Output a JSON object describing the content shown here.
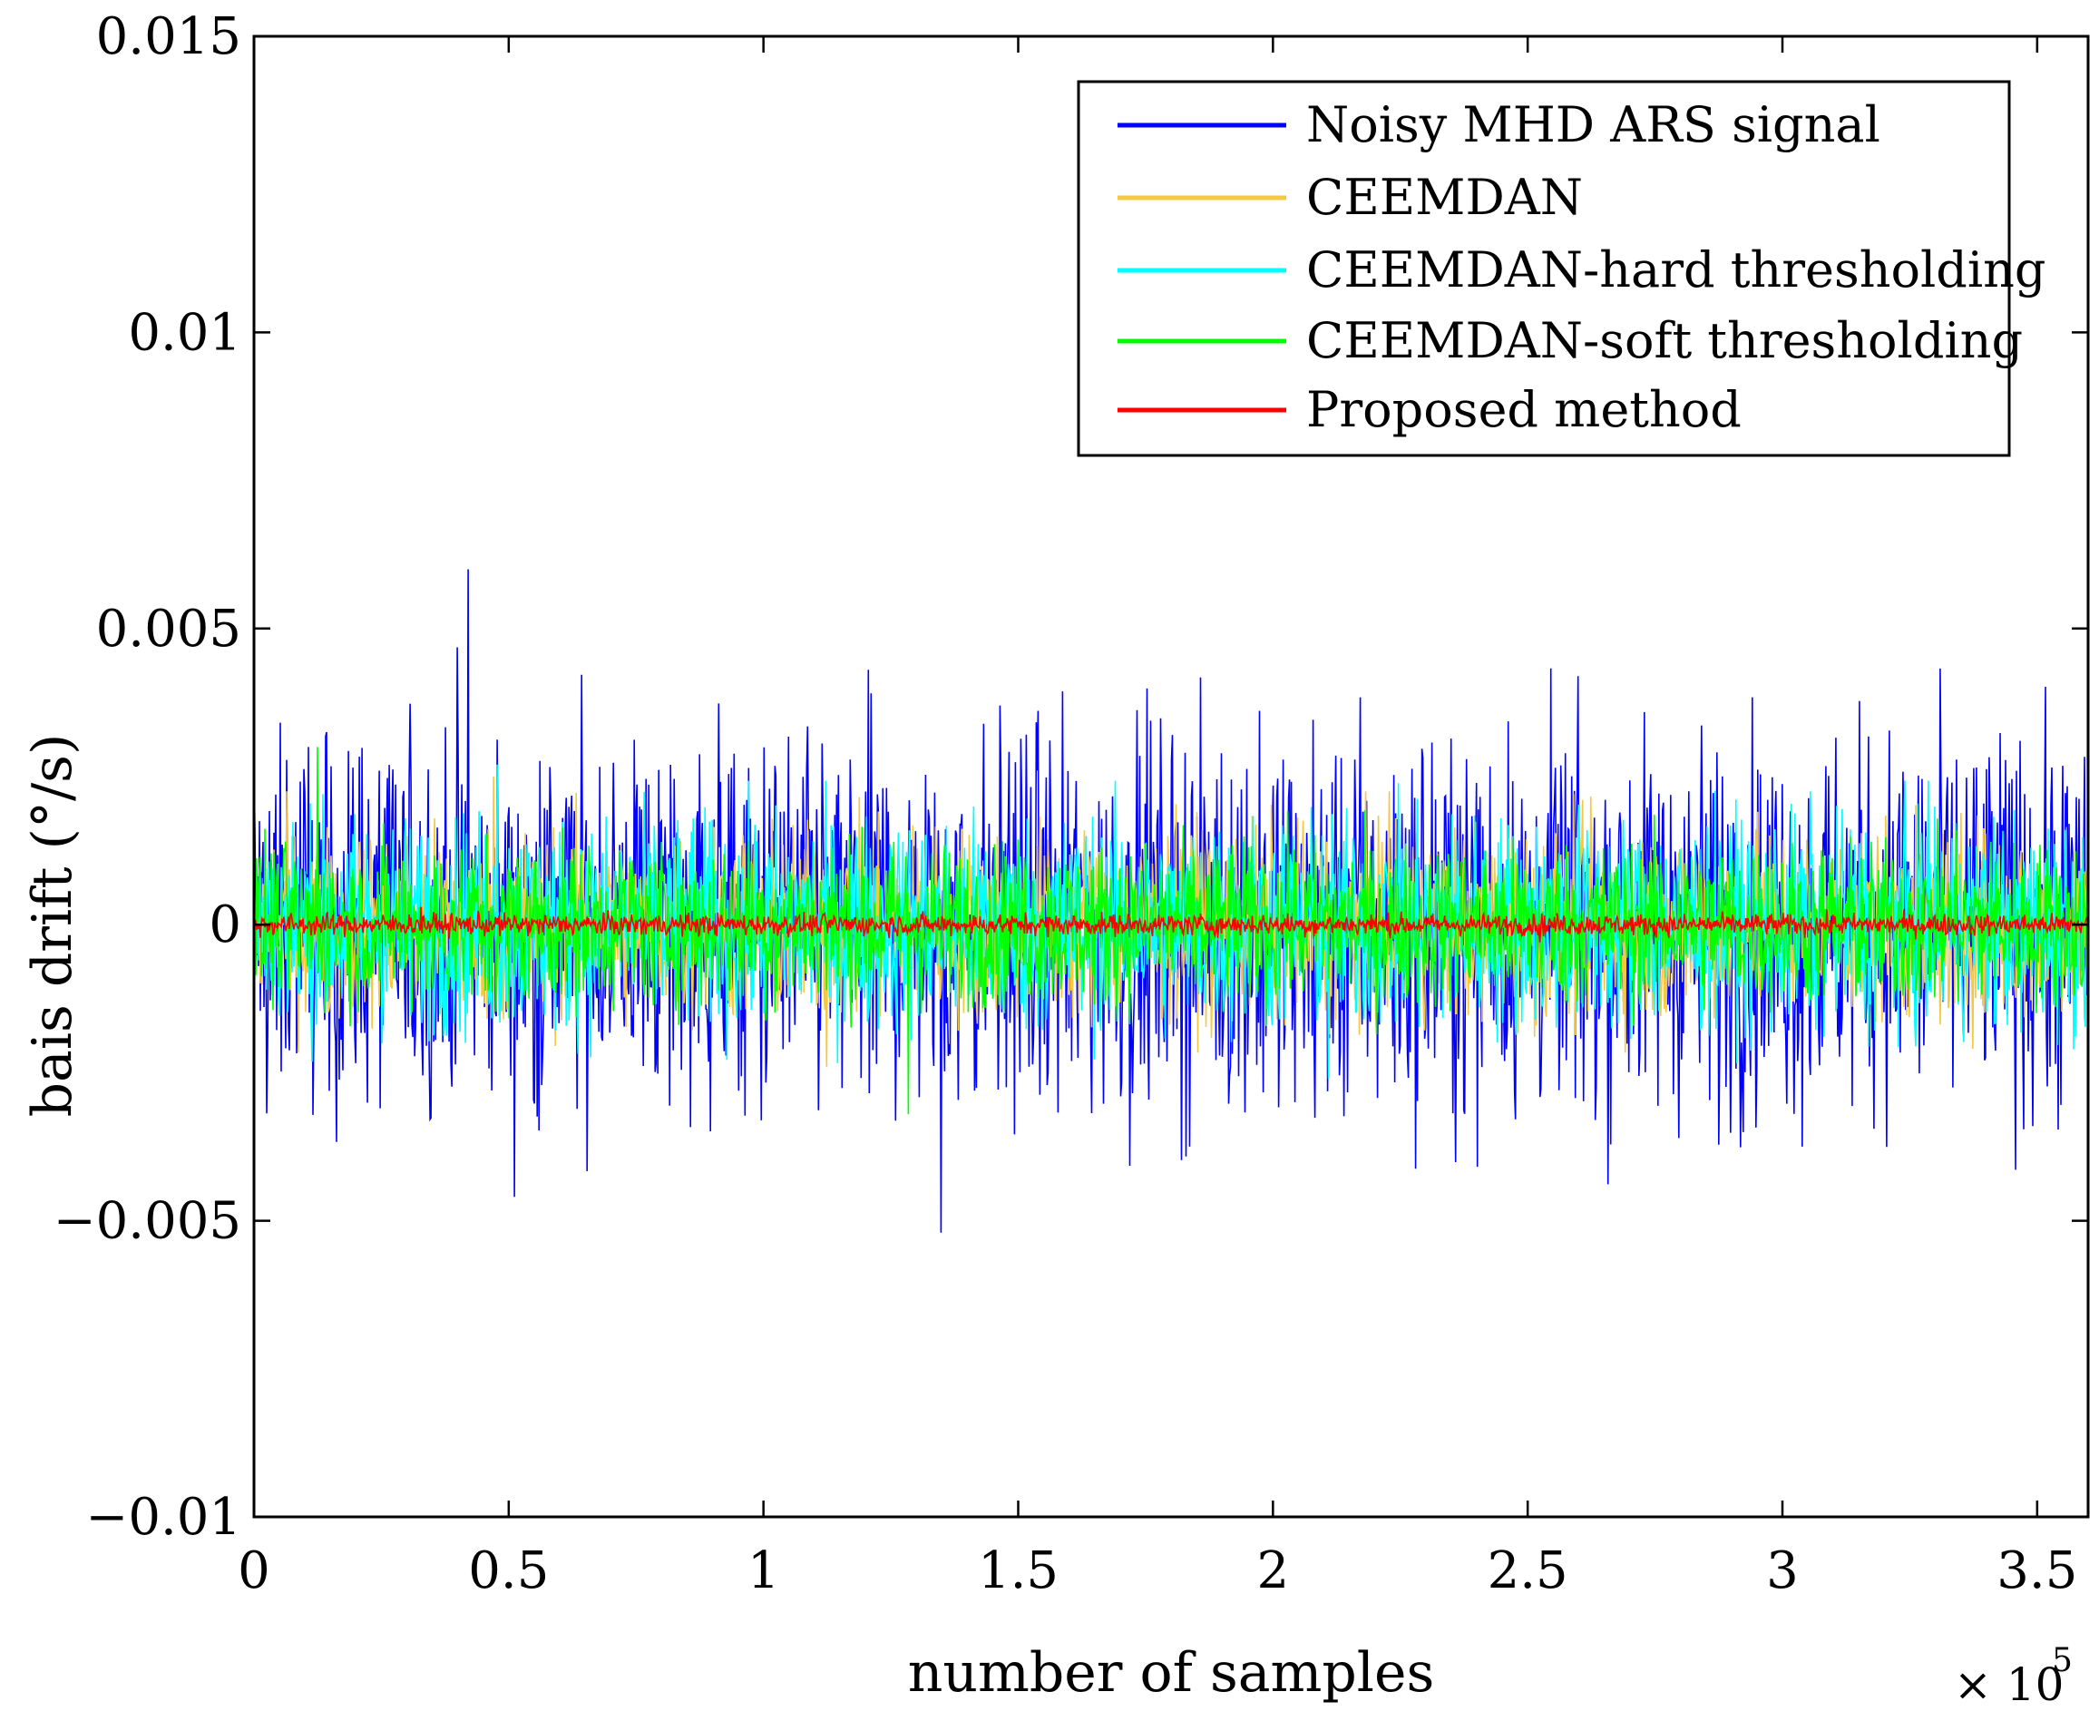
{
  "chart_data": {
    "type": "line",
    "title": "",
    "xlabel": "number of samples",
    "ylabel": "bais drift (°/s)",
    "x_exponent_label": "× 10",
    "x_exponent_power": "5",
    "xlim": [
      0,
      3.6
    ],
    "ylim": [
      -0.01,
      0.015
    ],
    "x_ticks": [
      0,
      0.5,
      1,
      1.5,
      2,
      2.5,
      3,
      3.5
    ],
    "x_tick_labels": [
      "0",
      "0.5",
      "1",
      "1.5",
      "2",
      "2.5",
      "3",
      "3.5"
    ],
    "y_ticks": [
      -0.01,
      -0.005,
      0,
      0.005,
      0.01,
      0.015
    ],
    "y_tick_labels": [
      "−0.01",
      "−0.005",
      "0",
      "0.005",
      "0.01",
      "0.015"
    ],
    "grid": false,
    "legend_position": "top-right",
    "series": [
      {
        "name": "Noisy MHD ARS signal",
        "color": "#0000ff",
        "mean": 0,
        "typical_band": 0.0035,
        "peak_max": 0.006,
        "peak_min": -0.0052
      },
      {
        "name": "CEEMDAN",
        "color": "#f5c842",
        "mean": 0,
        "typical_band": 0.0018,
        "peak_max": 0.0025,
        "peak_min": -0.0024
      },
      {
        "name": "CEEMDAN-hard thresholding",
        "color": "#00ffff",
        "mean": 0,
        "typical_band": 0.002,
        "peak_max": 0.0027,
        "peak_min": -0.0026
      },
      {
        "name": "CEEMDAN-soft thresholding",
        "color": "#00ff00",
        "mean": 0,
        "typical_band": 0.0015,
        "peak_max": 0.003,
        "peak_min": -0.0032
      },
      {
        "name": "Proposed method",
        "color": "#ff0000",
        "mean": 0,
        "typical_band": 0.0002,
        "peak_max": 0.0003,
        "peak_min": -0.0003
      }
    ]
  }
}
